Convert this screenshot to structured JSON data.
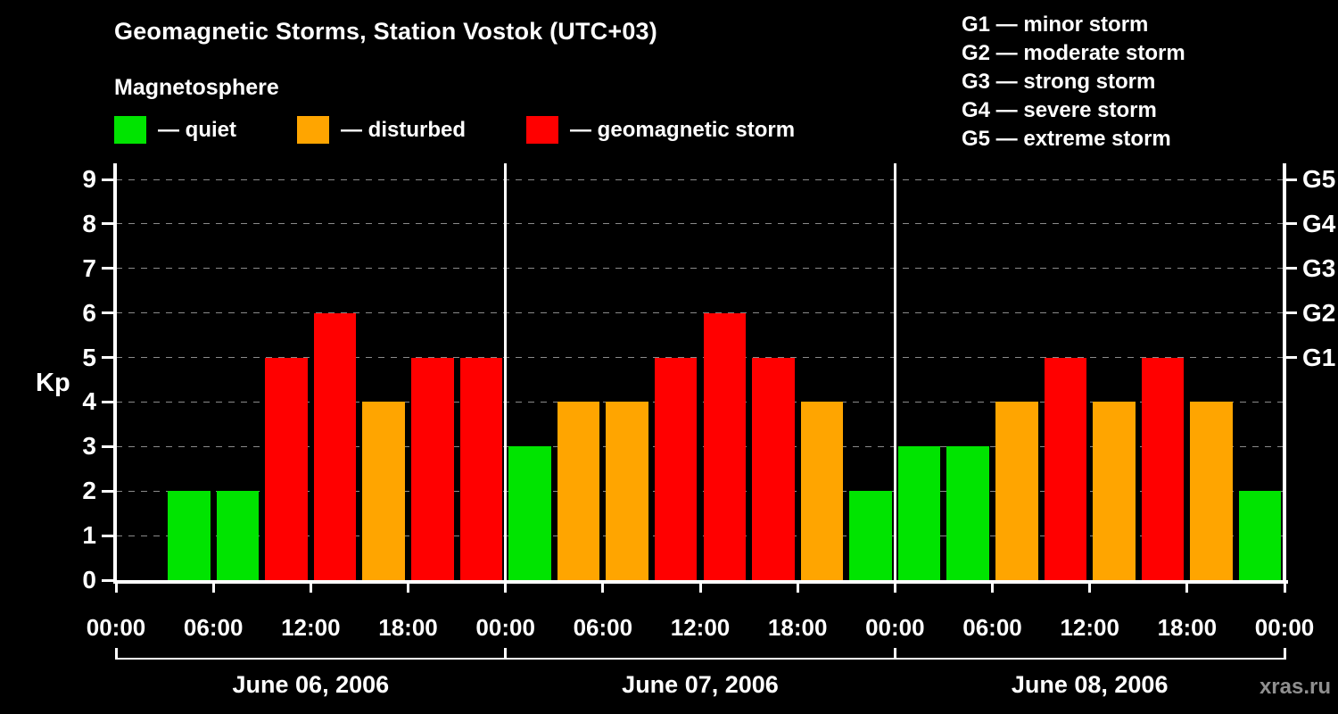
{
  "title": "Geomagnetic Storms, Station Vostok (UTC+03)",
  "legend": {
    "title": "Magnetosphere",
    "items": [
      {
        "label": "— quiet",
        "key": "quiet"
      },
      {
        "label": "— disturbed",
        "key": "disturbed"
      },
      {
        "label": "— geomagnetic storm",
        "key": "storm"
      }
    ]
  },
  "storm_scale_legend": [
    "G1 — minor storm",
    "G2 — moderate storm",
    "G3 — strong storm",
    "G4 — severe storm",
    "G5 — extreme storm"
  ],
  "watermark": "xras.ru",
  "chart_data": {
    "type": "bar",
    "title": "Geomagnetic Storms, Station Vostok (UTC+03)",
    "ylabel": "Kp",
    "ylim": [
      0,
      9.4
    ],
    "yticks": [
      0,
      1,
      2,
      3,
      4,
      5,
      6,
      7,
      8,
      9
    ],
    "grid": "dashed horizontal lines at every integer Kp value",
    "legend_position": "top",
    "interval_hours": 3,
    "x_tick_labels_per_day": [
      "00:00",
      "06:00",
      "12:00",
      "18:00"
    ],
    "right_axis": [
      {
        "label": "G1",
        "value": 5
      },
      {
        "label": "G2",
        "value": 6
      },
      {
        "label": "G3",
        "value": 7
      },
      {
        "label": "G4",
        "value": 8
      },
      {
        "label": "G5",
        "value": 9
      }
    ],
    "days": [
      {
        "label": "June 06, 2006",
        "values": [
          0,
          2,
          2,
          5,
          6,
          4,
          5,
          5
        ]
      },
      {
        "label": "June 07, 2006",
        "values": [
          3,
          4,
          4,
          5,
          6,
          5,
          4,
          2
        ]
      },
      {
        "label": "June 08, 2006",
        "values": [
          3,
          3,
          4,
          5,
          4,
          5,
          4,
          2
        ]
      }
    ],
    "thresholds": {
      "quiet_max": 3,
      "disturbed_max": 4,
      "storm_min": 5
    },
    "colors": {
      "quiet": "#00e400",
      "disturbed": "#ffa500",
      "storm": "#ff0000"
    }
  }
}
